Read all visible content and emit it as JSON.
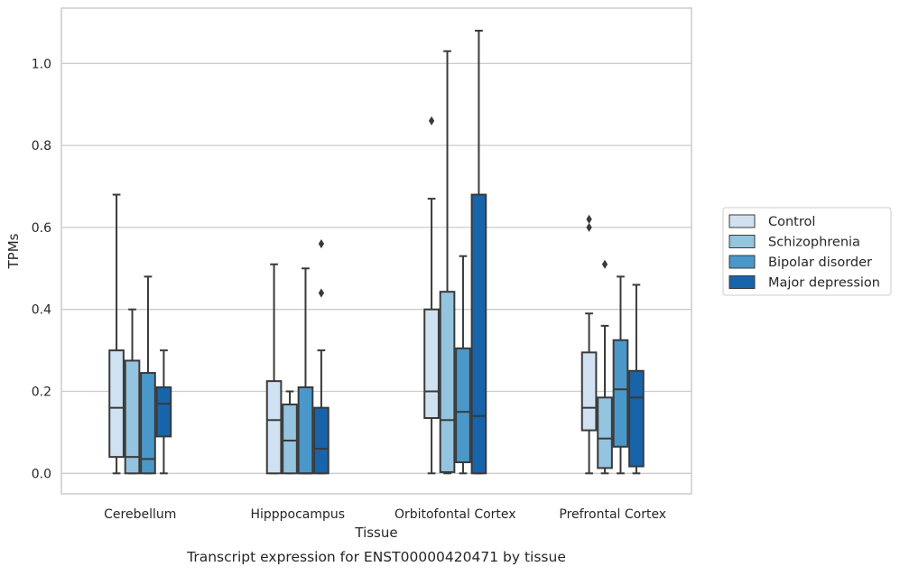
{
  "chart_data": {
    "type": "box",
    "title": "",
    "caption": "Transcript expression for ENST00000420471 by tissue",
    "xlabel": "Tissue",
    "ylabel": "TPMs",
    "ylim": [
      -0.05,
      1.135
    ],
    "yticks": [
      0.0,
      0.2,
      0.4,
      0.6,
      0.8,
      1.0
    ],
    "ytick_labels": [
      "0.0",
      "0.2",
      "0.4",
      "0.6",
      "0.8",
      "1.0"
    ],
    "grid": "horizontal",
    "legend_position": "right",
    "categories": [
      "Cerebellum",
      "Hipppocampus",
      "Orbitofontal Cortex",
      "Prefrontal Cortex"
    ],
    "series": [
      {
        "name": "Control",
        "color": "#d0e1f2",
        "boxes": [
          {
            "whislo": 0.0,
            "q1": 0.04,
            "med": 0.16,
            "q3": 0.3,
            "whishi": 0.68,
            "fliers": []
          },
          {
            "whislo": 0.0,
            "q1": 0.0,
            "med": 0.13,
            "q3": 0.225,
            "whishi": 0.51,
            "fliers": []
          },
          {
            "whislo": 0.0,
            "q1": 0.135,
            "med": 0.2,
            "q3": 0.4,
            "whishi": 0.67,
            "fliers": [
              0.86
            ]
          },
          {
            "whislo": 0.0,
            "q1": 0.105,
            "med": 0.16,
            "q3": 0.295,
            "whishi": 0.39,
            "fliers": [
              0.6,
              0.62
            ]
          }
        ]
      },
      {
        "name": "Schizophrenia",
        "color": "#94c4df",
        "boxes": [
          {
            "whislo": 0.0,
            "q1": 0.0,
            "med": 0.04,
            "q3": 0.275,
            "whishi": 0.4,
            "fliers": []
          },
          {
            "whislo": 0.0,
            "q1": 0.0,
            "med": 0.08,
            "q3": 0.168,
            "whishi": 0.2,
            "fliers": []
          },
          {
            "whislo": 0.0,
            "q1": 0.003,
            "med": 0.13,
            "q3": 0.443,
            "whishi": 1.03,
            "fliers": []
          },
          {
            "whislo": 0.0,
            "q1": 0.013,
            "med": 0.085,
            "q3": 0.185,
            "whishi": 0.36,
            "fliers": [
              0.51
            ]
          }
        ]
      },
      {
        "name": "Bipolar disorder",
        "color": "#4a98c9",
        "boxes": [
          {
            "whislo": 0.0,
            "q1": 0.0,
            "med": 0.035,
            "q3": 0.245,
            "whishi": 0.48,
            "fliers": []
          },
          {
            "whislo": 0.0,
            "q1": 0.0,
            "med": 0.0,
            "q3": 0.21,
            "whishi": 0.5,
            "fliers": []
          },
          {
            "whislo": 0.0,
            "q1": 0.027,
            "med": 0.15,
            "q3": 0.305,
            "whishi": 0.53,
            "fliers": []
          },
          {
            "whislo": 0.0,
            "q1": 0.065,
            "med": 0.205,
            "q3": 0.325,
            "whishi": 0.48,
            "fliers": []
          }
        ]
      },
      {
        "name": "Major depression",
        "color": "#1764ab",
        "boxes": [
          {
            "whislo": 0.0,
            "q1": 0.09,
            "med": 0.17,
            "q3": 0.21,
            "whishi": 0.3,
            "fliers": []
          },
          {
            "whislo": 0.0,
            "q1": 0.0,
            "med": 0.06,
            "q3": 0.16,
            "whishi": 0.3,
            "fliers": [
              0.44,
              0.56
            ]
          },
          {
            "whislo": 0.0,
            "q1": 0.0,
            "med": 0.14,
            "q3": 0.68,
            "whishi": 1.08,
            "fliers": []
          },
          {
            "whislo": 0.0,
            "q1": 0.017,
            "med": 0.185,
            "q3": 0.25,
            "whishi": 0.46,
            "fliers": []
          }
        ]
      }
    ]
  },
  "colors": {
    "axis_frame": "#cccccc",
    "grid": "#cccccc",
    "box_edge": "#3a3a3a",
    "text": "#262626"
  }
}
